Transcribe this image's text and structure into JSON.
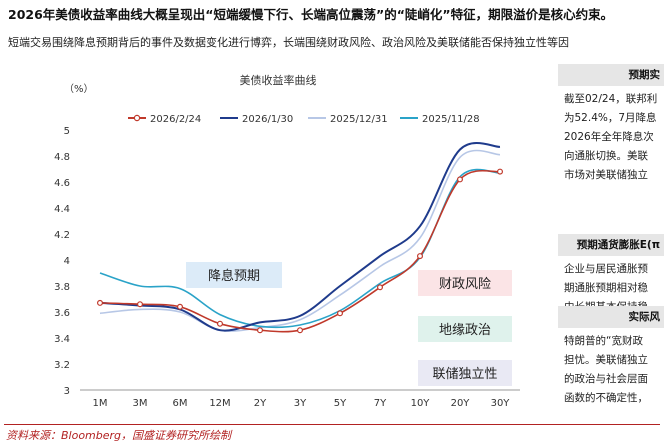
{
  "header": {
    "headline": "2026年美债收益率曲线大概呈现出“短端缓慢下行、长端高位震荡”的“陡峭化”特征，期限溢价是核心约束。",
    "subline": "短端交易围绕降息预期背后的事件及数据变化进行博弈，长端围绕财政风险、政治风险及美联储能否保持独立性等因"
  },
  "chart_data": {
    "type": "line",
    "title": "美债收益率曲线",
    "ylabel": "（%）",
    "xlabel": "",
    "categories": [
      "1M",
      "3M",
      "6M",
      "12M",
      "2Y",
      "3Y",
      "5Y",
      "7Y",
      "10Y",
      "20Y",
      "30Y"
    ],
    "yticks": [
      "3",
      "3.2",
      "3.4",
      "3.6",
      "3.8",
      "4",
      "4.2",
      "4.4",
      "4.6",
      "4.8",
      "5"
    ],
    "ylim": [
      3,
      5
    ],
    "legend_position": "top",
    "series": [
      {
        "name": "2026/2/24",
        "color": "#c0392b",
        "markers": true,
        "values": [
          3.67,
          3.66,
          3.64,
          3.51,
          3.46,
          3.46,
          3.59,
          3.79,
          4.03,
          4.62,
          4.68
        ]
      },
      {
        "name": "2026/1/30",
        "color": "#1f3b8c",
        "markers": false,
        "values": [
          3.67,
          3.65,
          3.62,
          3.46,
          3.52,
          3.57,
          3.8,
          4.03,
          4.26,
          4.85,
          4.87
        ]
      },
      {
        "name": "2025/12/31",
        "color": "#b7c7e6",
        "markers": false,
        "values": [
          3.59,
          3.62,
          3.6,
          3.46,
          3.48,
          3.54,
          3.73,
          3.95,
          4.17,
          4.79,
          4.81
        ]
      },
      {
        "name": "2025/11/28",
        "color": "#2aa3c8",
        "markers": false,
        "values": [
          3.9,
          3.8,
          3.78,
          3.58,
          3.49,
          3.5,
          3.61,
          3.82,
          4.02,
          4.64,
          4.67
        ]
      }
    ],
    "annotations": [
      {
        "text": "降息预期",
        "bg": "#dcebf8"
      },
      {
        "text": "财政风险",
        "bg": "#fbe4e6"
      },
      {
        "text": "地缘政治",
        "bg": "#dff2ec"
      },
      {
        "text": "联储独立性",
        "bg": "#e9e9f4"
      }
    ]
  },
  "side_panels": [
    {
      "title": "预期实",
      "lines": [
        "截至02/24，联邦利",
        "为52.4%，7月降息",
        "2026年全年降息次",
        "向通胀切换。美联",
        "市场对美联储独立"
      ]
    },
    {
      "title": "预期通货膨胀E(π",
      "lines": [
        "企业与居民通胀预",
        "期通胀预期相对稳",
        "中长期基本保持稳"
      ]
    },
    {
      "title": "实际风",
      "lines": [
        "特朗普的“宽财政",
        "担忧。美联储独立",
        "的政治与社会层面",
        "函数的不确定性，"
      ]
    }
  ],
  "footer": {
    "source": "资料来源：Bloomberg，国盛证券研究所绘制"
  }
}
